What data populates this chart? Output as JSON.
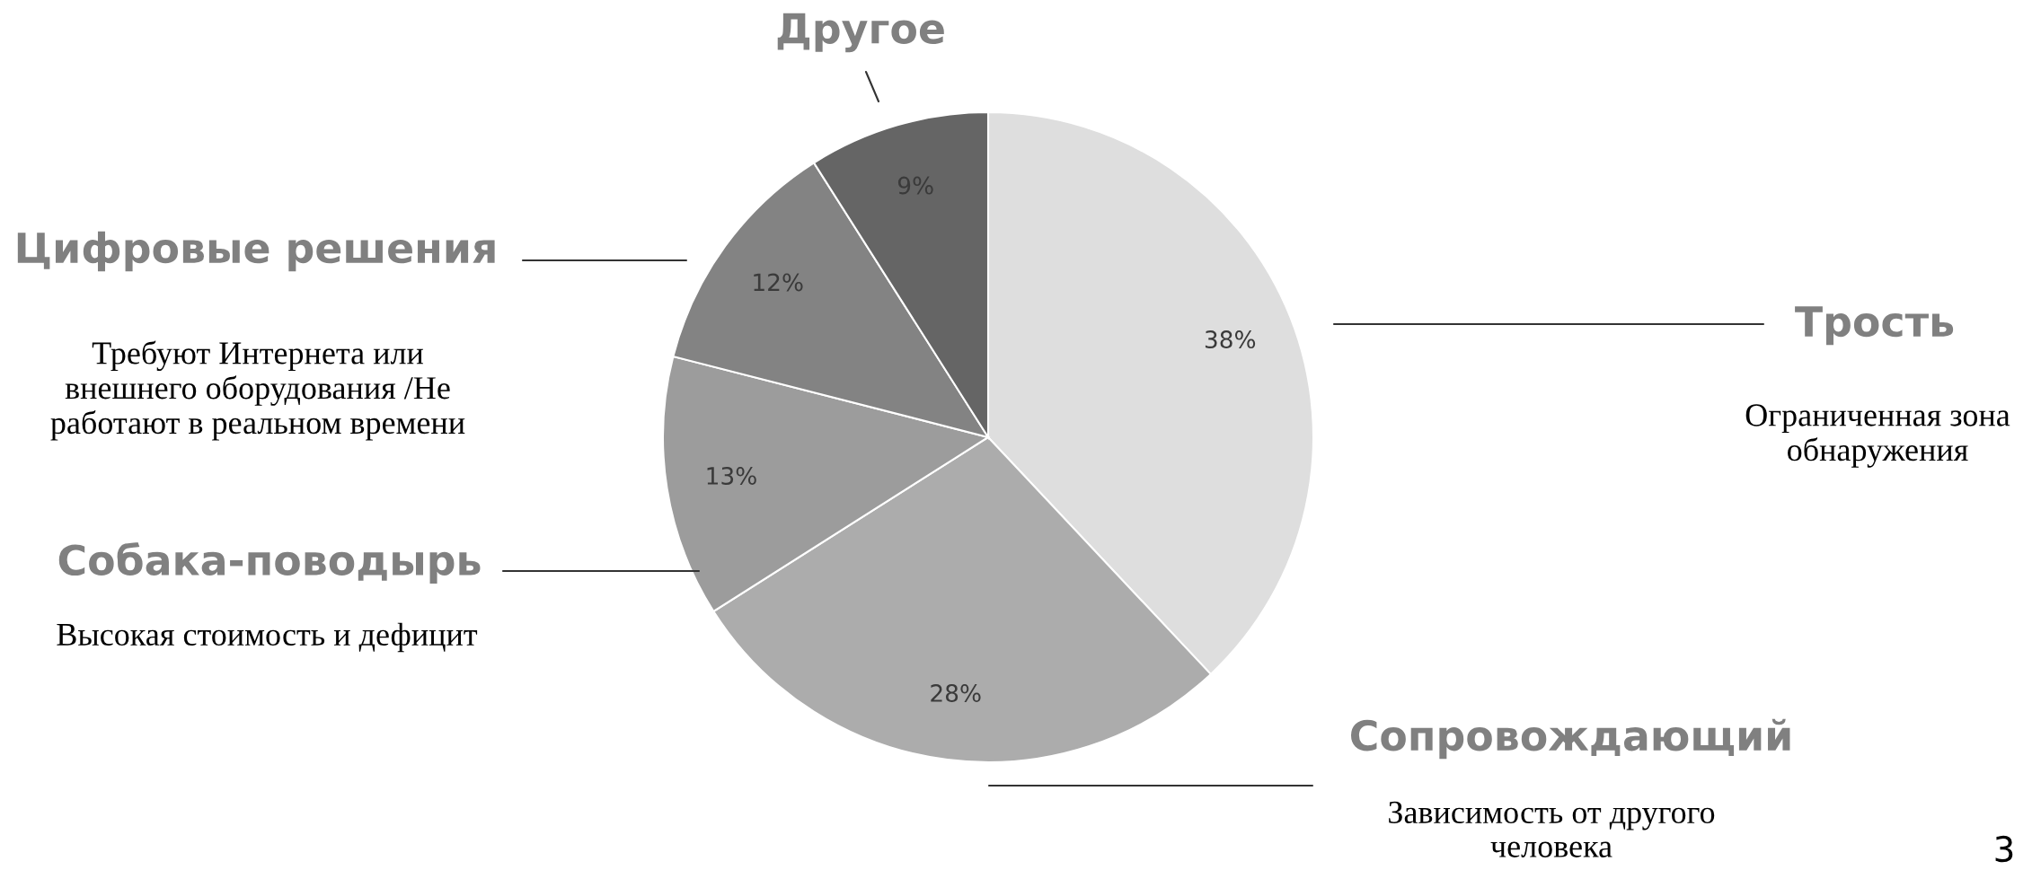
{
  "chart_data": {
    "type": "pie",
    "categories": [
      "Трость",
      "Сопровождающий",
      "Собака-поводырь",
      "Цифровые решения",
      "Другое"
    ],
    "values": [
      38,
      28,
      13,
      12,
      9
    ],
    "value_labels": [
      "38%",
      "28%",
      "13%",
      "12%",
      "9%"
    ],
    "colors": [
      "#dedede",
      "#acacac",
      "#9c9c9c",
      "#838383",
      "#656565"
    ],
    "annotations": [
      "Ограниченная зона\nобнаружения",
      "Зависимость от другого\nчеловека",
      "Высокая стоимость и дефицит",
      "Требуют Интернета или\nвнешнего оборудования /Не\nработают в реальном времени",
      "3"
    ]
  }
}
